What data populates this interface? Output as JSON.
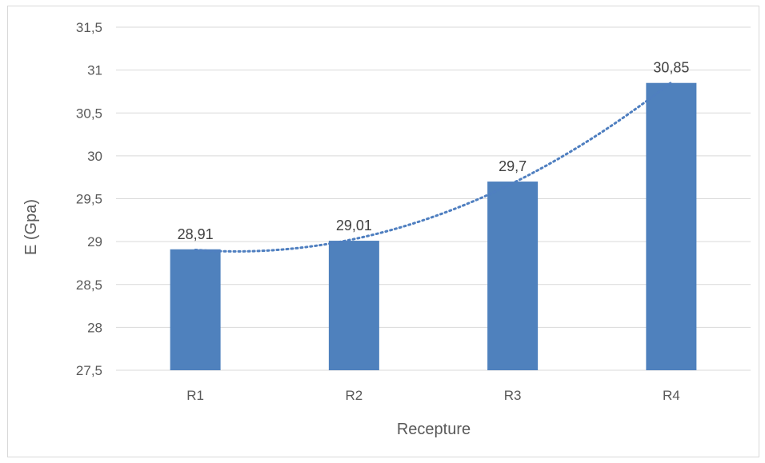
{
  "chart_data": {
    "type": "bar",
    "title": "",
    "xlabel": "Recepture",
    "ylabel": "E (Gpa)",
    "categories": [
      "R1",
      "R2",
      "R3",
      "R4"
    ],
    "values": [
      28.91,
      29.01,
      29.7,
      30.85
    ],
    "data_labels": [
      "28,91",
      "29,01",
      "29,7",
      "30,85"
    ],
    "ylim": [
      27.5,
      31.5
    ],
    "yticks": [
      27.5,
      28,
      28.5,
      29,
      29.5,
      30,
      30.5,
      31,
      31.5
    ],
    "ytick_labels": [
      "27,5",
      "28",
      "28,5",
      "29",
      "29,5",
      "30",
      "30,5",
      "31",
      "31,5"
    ],
    "grid": true,
    "legend": "none",
    "trendline": {
      "type": "polynomial",
      "style": "dotted",
      "color": "#4f7fc0"
    },
    "colors": {
      "bar": "#4f81bd",
      "grid": "#d9d9d9",
      "axis_text": "#595959",
      "label_text": "#404040"
    }
  }
}
